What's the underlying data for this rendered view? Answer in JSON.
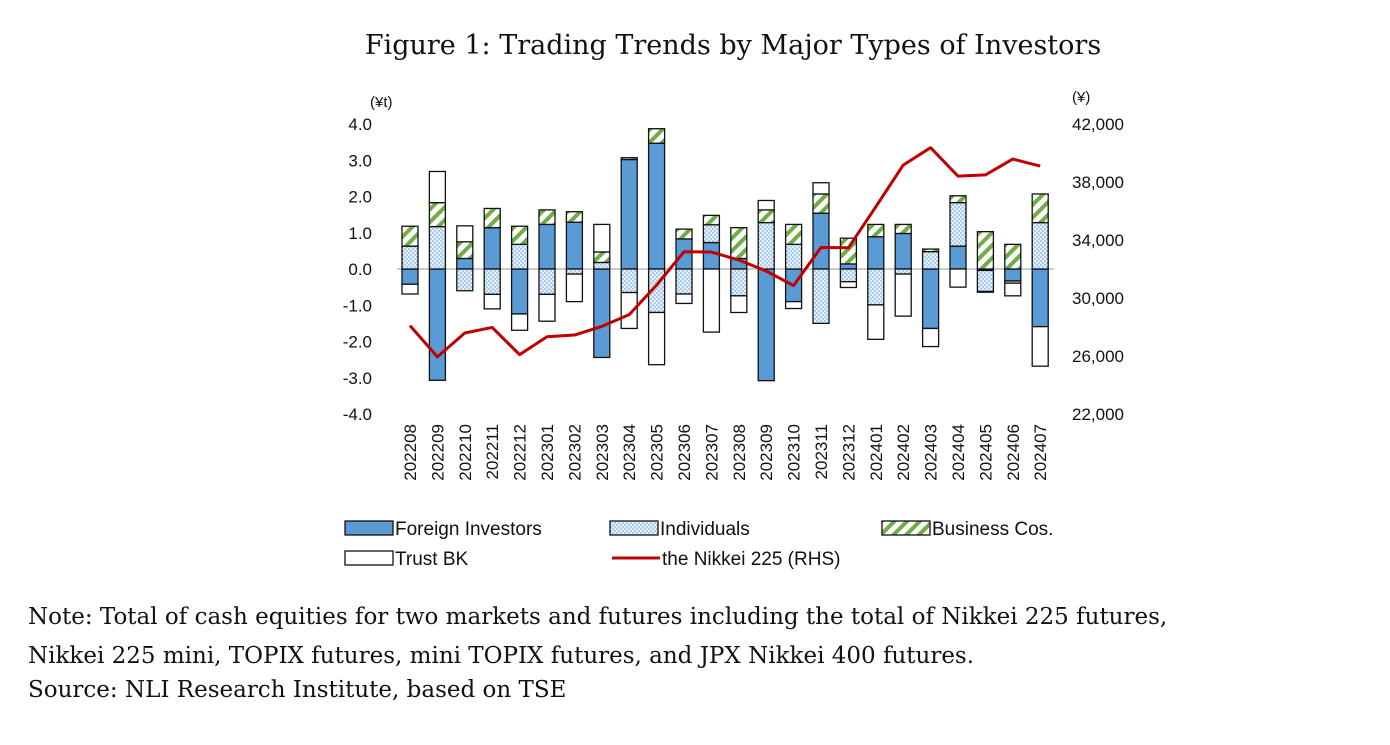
{
  "chart_data": {
    "type": "bar",
    "title": "Figure 1: Trading Trends by Major Types of Investors",
    "left_axis_unit": "(¥t)",
    "right_axis_unit": "(¥)",
    "ylim": [
      -4,
      4
    ],
    "yticks": [
      "4.0",
      "3.0",
      "2.0",
      "1.0",
      "0.0",
      "-1.0",
      "-2.0",
      "-3.0",
      "-4.0"
    ],
    "y2lim": [
      22000,
      42000
    ],
    "y2ticks": [
      "42,000",
      "38,000",
      "34,000",
      "30,000",
      "26,000",
      "22,000"
    ],
    "stacked": true,
    "legend_position": "bottom",
    "categories": [
      "202208",
      "202209",
      "202210",
      "202211",
      "202212",
      "202301",
      "202302",
      "202303",
      "202304",
      "202305",
      "202306",
      "202307",
      "202308",
      "202309",
      "202310",
      "202311",
      "202312",
      "202401",
      "202402",
      "202403",
      "202404",
      "202405",
      "202406",
      "202407"
    ],
    "series": [
      {
        "name": "Foreign Investors",
        "color": "#5b9bd5",
        "values": [
          -0.42,
          -3.07,
          0.29,
          1.14,
          -1.24,
          1.23,
          1.29,
          -2.44,
          3.02,
          3.47,
          0.83,
          0.73,
          0.29,
          -3.08,
          -0.9,
          1.54,
          0.14,
          0.89,
          0.98,
          -1.64,
          0.63,
          -0.04,
          -0.33,
          -1.59
        ]
      },
      {
        "name": "Individuals",
        "color": "#dbe9f6",
        "values": [
          0.63,
          1.17,
          -0.6,
          -0.7,
          0.68,
          -0.7,
          -0.14,
          0.18,
          -0.65,
          -1.2,
          -0.69,
          0.49,
          -0.74,
          1.28,
          0.68,
          -1.5,
          -0.35,
          -0.99,
          -0.14,
          0.48,
          1.2,
          -0.58,
          -0.06,
          1.28
        ]
      },
      {
        "name": "Business Cos.",
        "color": "#70ad47",
        "values": [
          0.55,
          0.66,
          0.46,
          0.53,
          0.5,
          0.4,
          0.29,
          0.29,
          0.05,
          0.4,
          0.27,
          0.26,
          0.85,
          0.35,
          0.55,
          0.53,
          0.71,
          0.34,
          0.25,
          0.07,
          0.19,
          1.03,
          0.68,
          0.79
        ]
      },
      {
        "name": "Trust BK",
        "color": "#ffffff",
        "values": [
          -0.27,
          0.86,
          0.44,
          -0.4,
          -0.45,
          -0.74,
          -0.76,
          0.76,
          -0.99,
          -1.44,
          -0.26,
          -1.74,
          -0.46,
          0.26,
          -0.19,
          0.31,
          -0.16,
          -0.95,
          -1.16,
          -0.5,
          -0.5,
          -0.02,
          -0.35,
          -1.09
        ]
      }
    ],
    "line_series": {
      "name": "the Nikkei 225 (RHS)",
      "color": "#c00000",
      "axis": "right",
      "values": [
        28092,
        25937,
        27587,
        27969,
        26095,
        27327,
        27446,
        28041,
        28856,
        30888,
        33189,
        33172,
        32619,
        31858,
        30859,
        33487,
        33464,
        36287,
        39166,
        40369,
        38406,
        38488,
        39583,
        39102
      ]
    }
  },
  "notes": [
    "Note: Total of cash equities for two markets and futures including the total of Nikkei 225 futures,",
    "Nikkei 225 mini, TOPIX futures, mini TOPIX futures, and JPX Nikkei 400 futures.",
    "Source: NLI Research Institute, based on TSE"
  ]
}
